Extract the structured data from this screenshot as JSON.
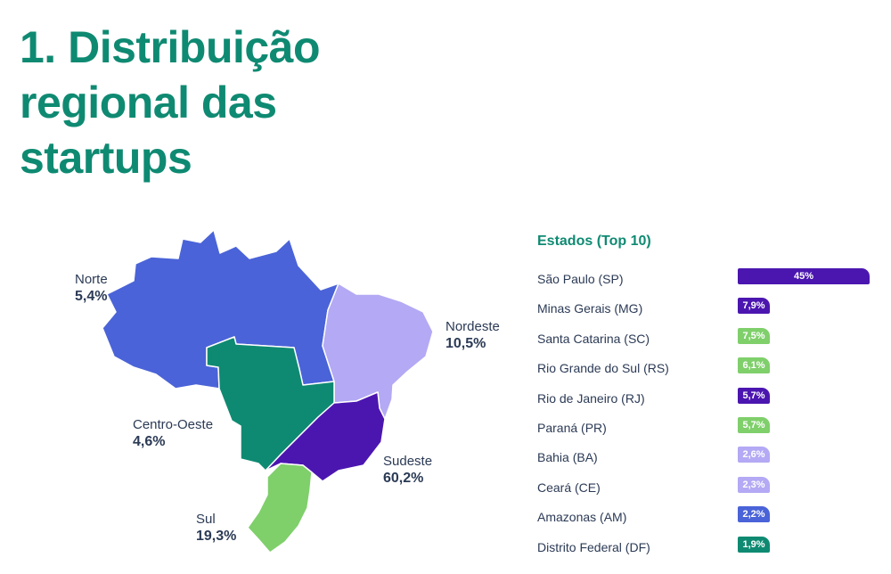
{
  "title": {
    "line1": "1. Distribuição",
    "line2": "regional das",
    "line3": "startups"
  },
  "colors": {
    "title": "#0f8a72",
    "norte": "#4a63d8",
    "nordeste": "#b3a9f4",
    "centro_oeste": "#0f8a72",
    "sudeste": "#4b16b0",
    "sul": "#7fcf6b",
    "text": "#2b3a55"
  },
  "regions": [
    {
      "name": "Norte",
      "value": "5,4%"
    },
    {
      "name": "Nordeste",
      "value": "10,5%"
    },
    {
      "name": "Centro-Oeste",
      "value": "4,6%"
    },
    {
      "name": "Sudeste",
      "value": "60,2%"
    },
    {
      "name": "Sul",
      "value": "19,3%"
    }
  ],
  "chart_data": {
    "type": "bar",
    "title": "Estados (Top 10)",
    "categories": [
      "São Paulo (SP)",
      "Minas Gerais (MG)",
      "Santa Catarina (SC)",
      "Rio Grande do Sul (RS)",
      "Rio de Janeiro (RJ)",
      "Paraná (PR)",
      "Bahia (BA)",
      "Ceará (CE)",
      "Amazonas (AM)",
      "Distrito Federal (DF)"
    ],
    "values": [
      45,
      7.9,
      7.5,
      6.1,
      5.7,
      5.7,
      2.6,
      2.3,
      2.2,
      1.9
    ],
    "value_labels": [
      "45%",
      "7,9%",
      "7,5%",
      "6,1%",
      "5,7%",
      "5,7%",
      "2,6%",
      "2,3%",
      "2,2%",
      "1,9%"
    ],
    "bar_regions": [
      "Sudeste",
      "Sudeste",
      "Sul",
      "Sul",
      "Sudeste",
      "Sul",
      "Nordeste",
      "Nordeste",
      "Norte",
      "Centro-Oeste"
    ],
    "bar_colors": [
      "#4b16b0",
      "#4b16b0",
      "#7fcf6b",
      "#7fcf6b",
      "#4b16b0",
      "#7fcf6b",
      "#b3a9f4",
      "#b3a9f4",
      "#4a63d8",
      "#0f8a72"
    ],
    "xlim": [
      0,
      45
    ]
  }
}
